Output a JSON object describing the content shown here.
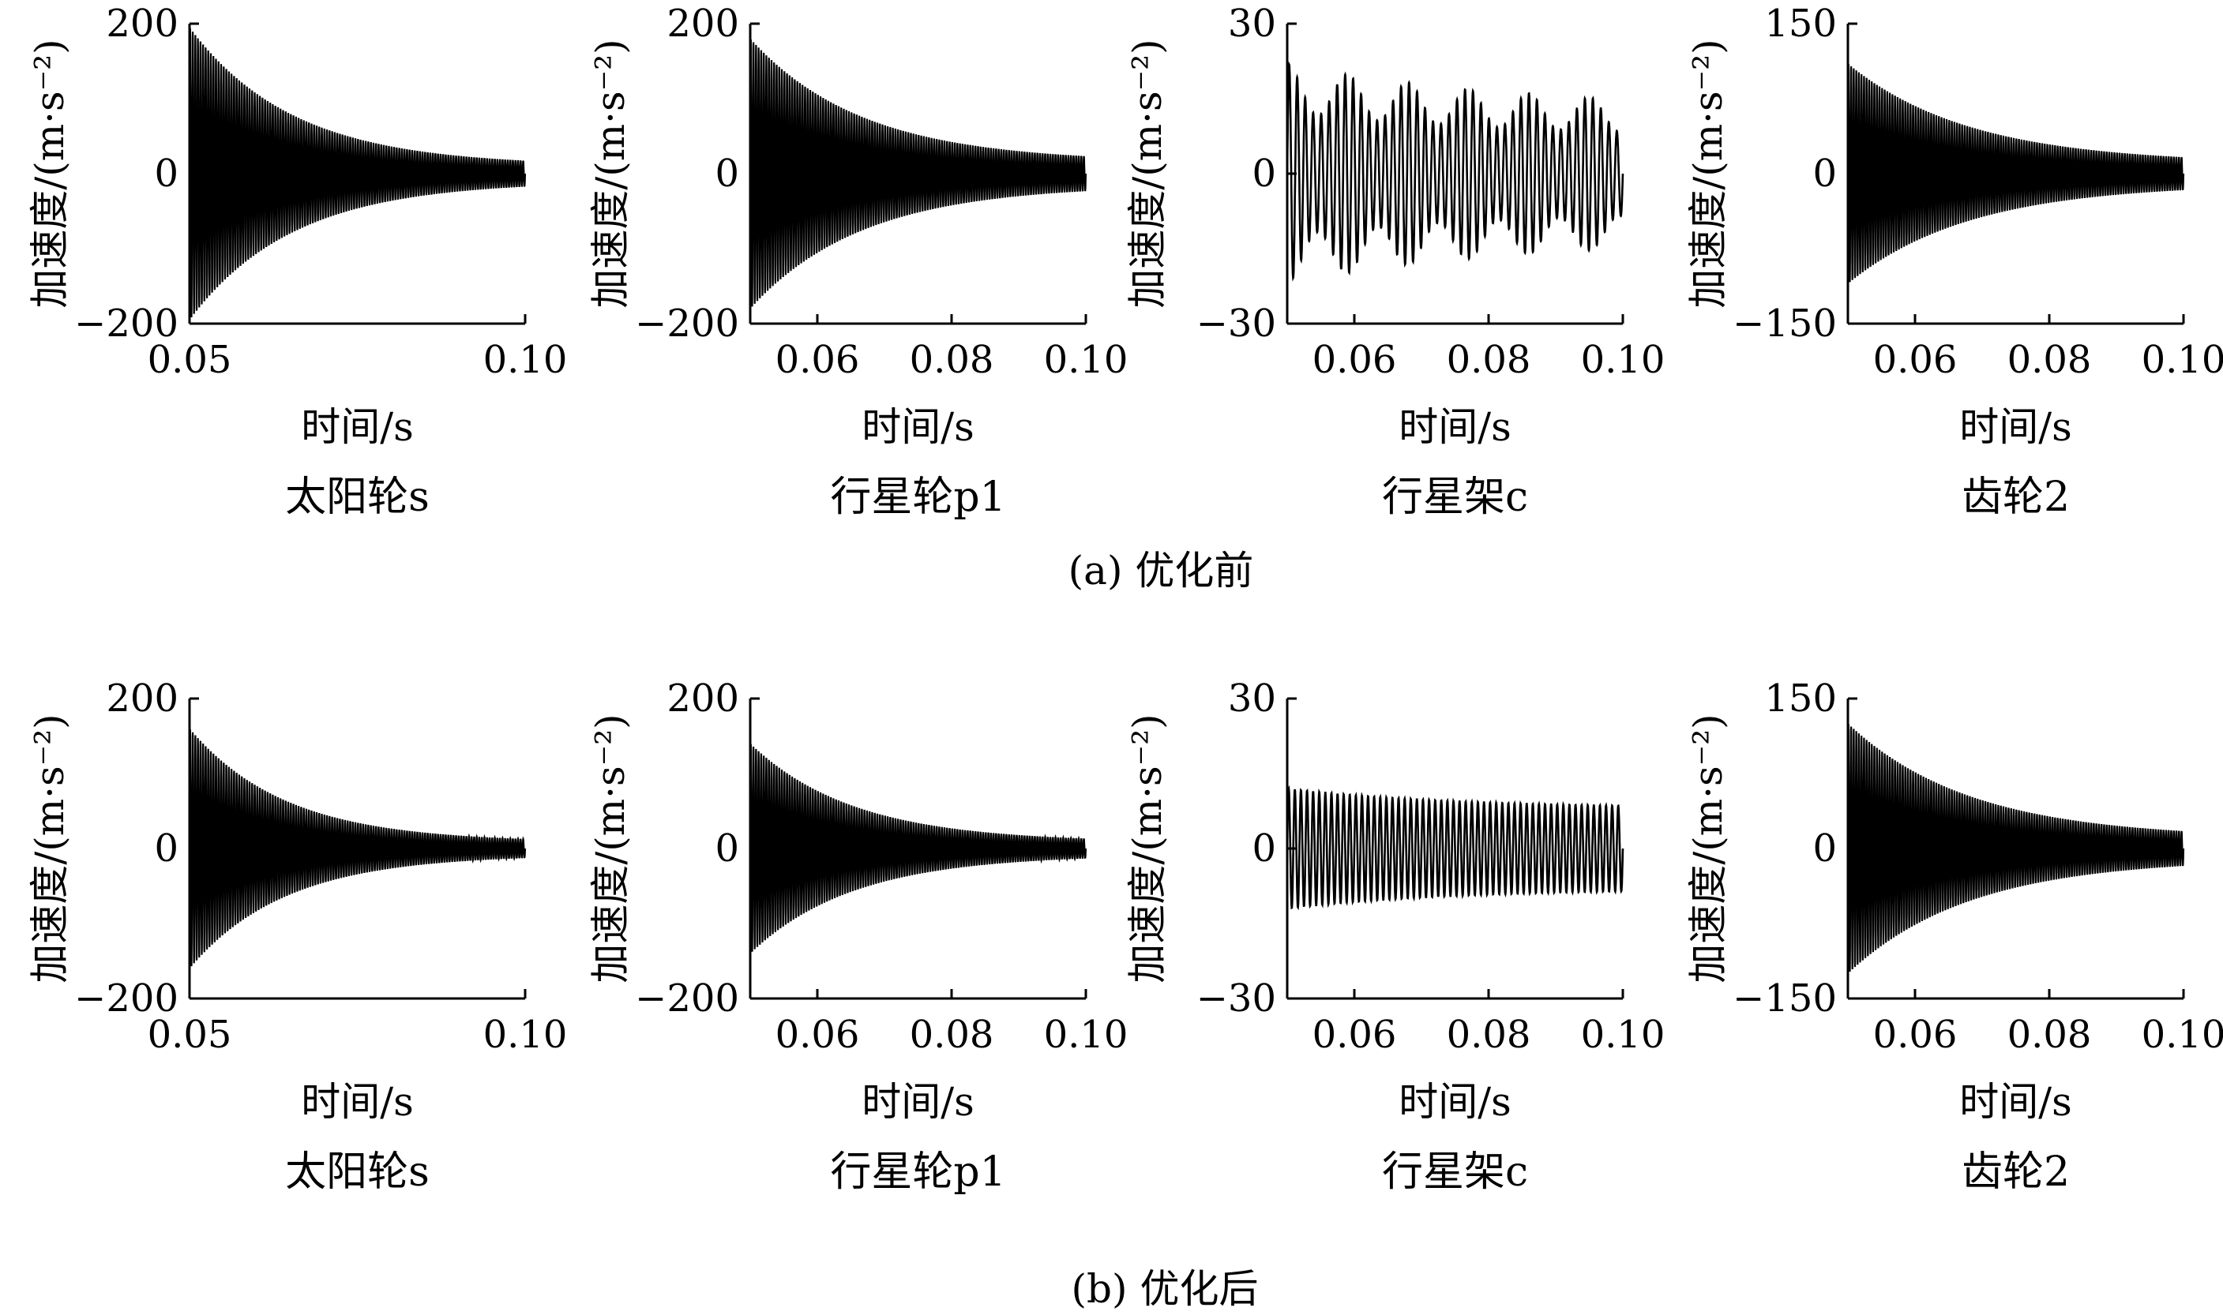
{
  "rows": [
    {
      "caption": "(a)  优化前",
      "panels": [
        {
          "title": "太阳轮s",
          "ylabel": "加速度/(m·s⁻²)",
          "xlabel": "时间/s"
        },
        {
          "title": "行星轮p1",
          "ylabel": "加速度/(m·s⁻²)",
          "xlabel": "时间/s"
        },
        {
          "title": "行星架c",
          "ylabel": "加速度/(m·s⁻²)",
          "xlabel": "时间/s"
        },
        {
          "title": "齿轮2",
          "ylabel": "加速度/(m·s⁻²)",
          "xlabel": "时间/s"
        }
      ]
    },
    {
      "caption": "(b)  优化后",
      "panels": [
        {
          "title": "太阳轮s",
          "ylabel": "加速度/(m·s⁻²)",
          "xlabel": "时间/s"
        },
        {
          "title": "行星轮p1",
          "ylabel": "加速度/(m·s⁻²)",
          "xlabel": "时间/s"
        },
        {
          "title": "行星架c",
          "ylabel": "加速度/(m·s⁻²)",
          "xlabel": "时间/s"
        },
        {
          "title": "齿轮2",
          "ylabel": "加速度/(m·s⁻²)",
          "xlabel": "时间/s"
        }
      ]
    }
  ],
  "chart_data": [
    {
      "type": "line",
      "group": "(a) 优化前",
      "title": "太阳轮s",
      "xlabel": "时间/s",
      "ylabel": "加速度/(m·s⁻²)",
      "xlim": [
        0.05,
        0.1
      ],
      "ylim": [
        -200,
        200
      ],
      "xticks": [
        "0.05",
        "0.10"
      ],
      "yticks": [
        "200",
        "0",
        "−200"
      ],
      "signal": {
        "kind": "decay",
        "x_start": 0.05,
        "x_end": 0.1,
        "amp_start": 195,
        "amp_end": 10,
        "decay_rate": 65,
        "cycles": 130
      }
    },
    {
      "type": "line",
      "group": "(a) 优化前",
      "title": "行星轮p1",
      "xlabel": "时间/s",
      "ylabel": "加速度/(m·s⁻²)",
      "xlim": [
        0.05,
        0.1
      ],
      "ylim": [
        -200,
        200
      ],
      "xticks": [
        "0.06",
        "0.08",
        "0.10"
      ],
      "yticks": [
        "200",
        "0",
        "−200"
      ],
      "signal": {
        "kind": "decay",
        "x_start": 0.05,
        "x_end": 0.1,
        "amp_start": 180,
        "amp_end": 15,
        "decay_rate": 60,
        "cycles": 130
      }
    },
    {
      "type": "line",
      "group": "(a) 优化前",
      "title": "行星架c",
      "xlabel": "时间/s",
      "ylabel": "加速度/(m·s⁻²)",
      "xlim": [
        0.05,
        0.1
      ],
      "ylim": [
        -30,
        30
      ],
      "xticks": [
        "0.06",
        "0.08",
        "0.10"
      ],
      "yticks": [
        "30",
        "0",
        "−30"
      ],
      "signal": {
        "kind": "beat",
        "x_start": 0.05,
        "x_end": 0.1,
        "amp_start": 22,
        "amp_end": 13,
        "decay_rate": 30,
        "cycles": 42
      }
    },
    {
      "type": "line",
      "group": "(a) 优化前",
      "title": "齿轮2",
      "xlabel": "时间/s",
      "ylabel": "加速度/(m·s⁻²)",
      "xlim": [
        0.05,
        0.1
      ],
      "ylim": [
        -150,
        150
      ],
      "xticks": [
        "0.06",
        "0.08",
        "0.10"
      ],
      "yticks": [
        "150",
        "0",
        "−150"
      ],
      "signal": {
        "kind": "decay",
        "x_start": 0.05,
        "x_end": 0.1,
        "amp_start": 110,
        "amp_end": 10,
        "decay_rate": 55,
        "cycles": 130
      }
    },
    {
      "type": "line",
      "group": "(b) 优化后",
      "title": "太阳轮s",
      "xlabel": "时间/s",
      "ylabel": "加速度/(m·s⁻²)",
      "xlim": [
        0.05,
        0.1
      ],
      "ylim": [
        -200,
        200
      ],
      "xticks": [
        "0.05",
        "0.10"
      ],
      "yticks": [
        "200",
        "0",
        "−200"
      ],
      "signal": {
        "kind": "decay",
        "x_start": 0.05,
        "x_end": 0.1,
        "amp_start": 160,
        "amp_end": 8,
        "decay_rate": 70,
        "cycles": 130
      }
    },
    {
      "type": "line",
      "group": "(b) 优化后",
      "title": "行星轮p1",
      "xlabel": "时间/s",
      "ylabel": "加速度/(m·s⁻²)",
      "xlim": [
        0.05,
        0.1
      ],
      "ylim": [
        -200,
        200
      ],
      "xticks": [
        "0.06",
        "0.08",
        "0.10"
      ],
      "yticks": [
        "200",
        "0",
        "−200"
      ],
      "signal": {
        "kind": "decay",
        "x_start": 0.05,
        "x_end": 0.1,
        "amp_start": 140,
        "amp_end": 8,
        "decay_rate": 65,
        "cycles": 130
      }
    },
    {
      "type": "line",
      "group": "(b) 优化后",
      "title": "行星架c",
      "xlabel": "时间/s",
      "ylabel": "加速度/(m·s⁻²)",
      "xlim": [
        0.05,
        0.1
      ],
      "ylim": [
        -30,
        30
      ],
      "xticks": [
        "0.06",
        "0.08",
        "0.10"
      ],
      "yticks": [
        "30",
        "0",
        "−30"
      ],
      "signal": {
        "kind": "steady",
        "x_start": 0.05,
        "x_end": 0.1,
        "amp_start": 12,
        "amp_end": 8,
        "decay_rate": 40,
        "cycles": 55
      }
    },
    {
      "type": "line",
      "group": "(b) 优化后",
      "title": "齿轮2",
      "xlabel": "时间/s",
      "ylabel": "加速度/(m·s⁻²)",
      "xlim": [
        0.05,
        0.1
      ],
      "ylim": [
        -150,
        150
      ],
      "xticks": [
        "0.06",
        "0.08",
        "0.10"
      ],
      "yticks": [
        "150",
        "0",
        "−150"
      ],
      "signal": {
        "kind": "decay",
        "x_start": 0.05,
        "x_end": 0.1,
        "amp_start": 125,
        "amp_end": 10,
        "decay_rate": 55,
        "cycles": 130
      }
    }
  ]
}
